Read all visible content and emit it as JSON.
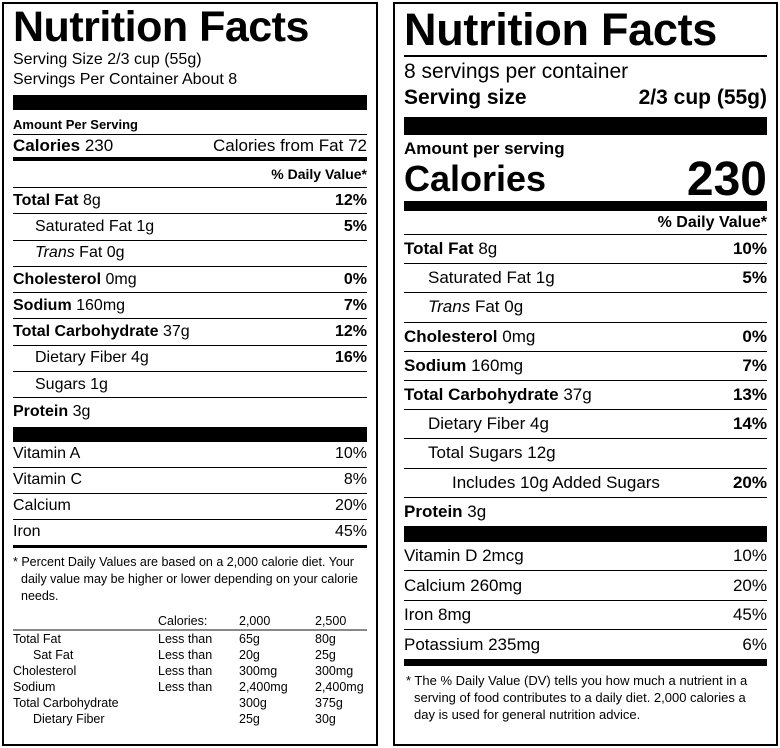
{
  "left": {
    "title": "Nutrition Facts",
    "serving_size": "Serving Size 2/3 cup (55g)",
    "servings_per_container": "Servings Per Container About 8",
    "amount_per_serving": "Amount Per Serving",
    "calories_label": "Calories",
    "calories_value": "230",
    "calories_from_fat": "Calories from Fat 72",
    "daily_value_header": "% Daily Value*",
    "nutrients": [
      {
        "name": "Total Fat",
        "amount": "8g",
        "dv": "12%",
        "bold": true,
        "indent": 0
      },
      {
        "name": "Saturated Fat",
        "amount": "1g",
        "dv": "5%",
        "bold": false,
        "indent": 1
      },
      {
        "name_italic": "Trans",
        "name": "Fat",
        "amount": "0g",
        "dv": "",
        "bold": false,
        "indent": 1
      },
      {
        "name": "Cholesterol",
        "amount": "0mg",
        "dv": "0%",
        "bold": true,
        "indent": 0
      },
      {
        "name": "Sodium",
        "amount": "160mg",
        "dv": "7%",
        "bold": true,
        "indent": 0
      },
      {
        "name": "Total Carbohydrate",
        "amount": "37g",
        "dv": "12%",
        "bold": true,
        "indent": 0
      },
      {
        "name": "Dietary Fiber",
        "amount": "4g",
        "dv": "16%",
        "bold": false,
        "indent": 1
      },
      {
        "name": "Sugars",
        "amount": "1g",
        "dv": "",
        "bold": false,
        "indent": 1
      },
      {
        "name": "Protein",
        "amount": "3g",
        "dv": "",
        "bold": true,
        "indent": 0
      }
    ],
    "vitamins": [
      {
        "name": "Vitamin A",
        "dv": "10%"
      },
      {
        "name": "Vitamin C",
        "dv": "8%"
      },
      {
        "name": "Calcium",
        "dv": "20%"
      },
      {
        "name": "Iron",
        "dv": "45%"
      }
    ],
    "footnote": "* Percent Daily Values are based on a 2,000 calorie diet. Your daily value may be higher or lower depending on your calorie needs.",
    "reference_table": {
      "header": [
        "",
        "Calories:",
        "2,000",
        "2,500"
      ],
      "rows": [
        [
          "Total Fat",
          "Less than",
          "65g",
          "80g"
        ],
        [
          "Sat Fat",
          "Less than",
          "20g",
          "25g"
        ],
        [
          "Cholesterol",
          "Less than",
          "300mg",
          "300mg"
        ],
        [
          "Sodium",
          "Less than",
          "2,400mg",
          "2,400mg"
        ],
        [
          "Total Carbohydrate",
          "",
          "300g",
          "375g"
        ],
        [
          "Dietary Fiber",
          "",
          "25g",
          "30g"
        ]
      ]
    }
  },
  "right": {
    "title": "Nutrition Facts",
    "servings_per_container": "8 servings per container",
    "serving_size_label": "Serving size",
    "serving_size_value": "2/3 cup (55g)",
    "amount_per_serving": "Amount per serving",
    "calories_label": "Calories",
    "calories_value": "230",
    "daily_value_header": "% Daily Value*",
    "nutrients": [
      {
        "name": "Total Fat",
        "amount": "8g",
        "dv": "10%",
        "bold": true,
        "indent": 0
      },
      {
        "name": "Saturated Fat",
        "amount": "1g",
        "dv": "5%",
        "bold": false,
        "indent": 1
      },
      {
        "name_italic": "Trans",
        "name": "Fat",
        "amount": "0g",
        "dv": "",
        "bold": false,
        "indent": 1
      },
      {
        "name": "Cholesterol",
        "amount": "0mg",
        "dv": "0%",
        "bold": true,
        "indent": 0
      },
      {
        "name": "Sodium",
        "amount": "160mg",
        "dv": "7%",
        "bold": true,
        "indent": 0
      },
      {
        "name": "Total Carbohydrate",
        "amount": "37g",
        "dv": "13%",
        "bold": true,
        "indent": 0
      },
      {
        "name": "Dietary Fiber",
        "amount": "4g",
        "dv": "14%",
        "bold": false,
        "indent": 1
      },
      {
        "name": "Total Sugars",
        "amount": "12g",
        "dv": "",
        "bold": false,
        "indent": 1
      },
      {
        "name": "Includes 10g Added Sugars",
        "amount": "",
        "dv": "20%",
        "bold": false,
        "indent": 2
      },
      {
        "name": "Protein",
        "amount": "3g",
        "dv": "",
        "bold": true,
        "indent": 0
      }
    ],
    "vitamins": [
      {
        "name": "Vitamin D 2mcg",
        "dv": "10%"
      },
      {
        "name": "Calcium 260mg",
        "dv": "20%"
      },
      {
        "name": "Iron 8mg",
        "dv": "45%"
      },
      {
        "name": "Potassium 235mg",
        "dv": "6%"
      }
    ],
    "footnote": "* The % Daily Value (DV) tells you how much a nutrient in a serving of food contributes to a daily diet. 2,000 calories a day is used for general nutrition advice."
  }
}
